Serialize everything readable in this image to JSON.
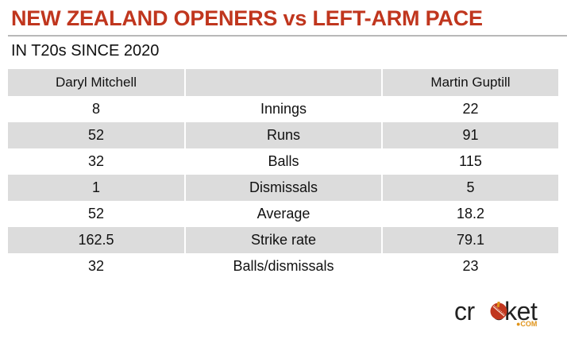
{
  "title": "NEW ZEALAND OPENERS vs LEFT-ARM PACE",
  "subtitle": "IN T20s SINCE 2020",
  "colors": {
    "title": "#c0361e",
    "shade": "#dcdcdc",
    "logo_accent": "#e0941a"
  },
  "table": {
    "headers": [
      "Daryl Mitchell",
      "",
      "Martin Guptill"
    ],
    "rows": [
      [
        "8",
        "Innings",
        "22"
      ],
      [
        "52",
        "Runs",
        "91"
      ],
      [
        "32",
        "Balls",
        "115"
      ],
      [
        "1",
        "Dismissals",
        "5"
      ],
      [
        "52",
        "Average",
        "18.2"
      ],
      [
        "162.5",
        "Strike rate",
        "79.1"
      ],
      [
        "32",
        "Balls/dismissals",
        "23"
      ]
    ]
  },
  "logo": {
    "word_left": "cr",
    "word_right": "cket",
    "sub": "●COM",
    "icon": "cricket-ball-icon"
  }
}
